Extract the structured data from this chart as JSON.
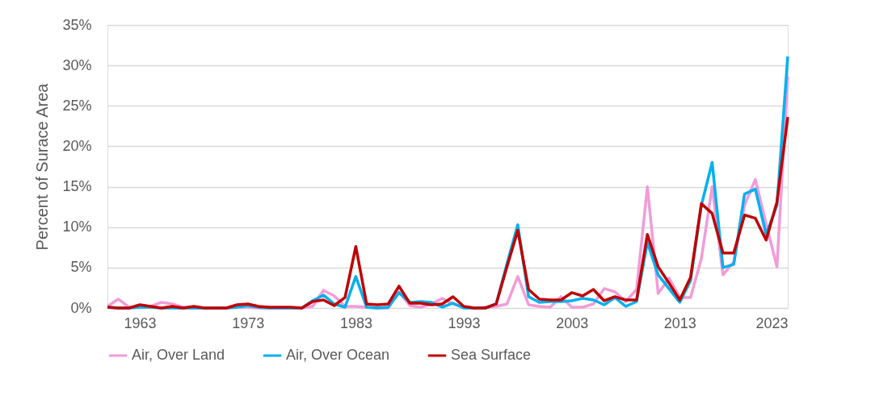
{
  "chart_data": {
    "type": "line",
    "ylabel": "Percent of Surace Area",
    "x": [
      1960,
      1961,
      1962,
      1963,
      1964,
      1965,
      1966,
      1967,
      1968,
      1969,
      1970,
      1971,
      1972,
      1973,
      1974,
      1975,
      1976,
      1977,
      1978,
      1979,
      1980,
      1981,
      1982,
      1983,
      1984,
      1985,
      1986,
      1987,
      1988,
      1989,
      1990,
      1991,
      1992,
      1993,
      1994,
      1995,
      1996,
      1997,
      1998,
      1999,
      2000,
      2001,
      2002,
      2003,
      2004,
      2005,
      2006,
      2007,
      2008,
      2009,
      2010,
      2011,
      2012,
      2013,
      2014,
      2015,
      2016,
      2017,
      2018,
      2019,
      2020,
      2021,
      2022,
      2023
    ],
    "series": [
      {
        "name": "Air, Over Land",
        "color": "#f19cd8",
        "values": [
          0.2,
          1.1,
          0.1,
          0.1,
          0.2,
          0.7,
          0.5,
          0.1,
          0,
          0,
          0,
          0,
          0.1,
          0.1,
          0,
          0,
          0,
          0,
          0,
          0.2,
          2.2,
          1.5,
          0.2,
          0.2,
          0.1,
          0,
          0,
          2.0,
          0.3,
          0.1,
          0.5,
          1.2,
          0.5,
          0.1,
          0,
          0.1,
          0.2,
          0.5,
          3.9,
          0.4,
          0.2,
          0.1,
          1.4,
          0.1,
          0.1,
          0.5,
          2.4,
          2.0,
          0.8,
          2.3,
          15.0,
          1.8,
          3.7,
          1.3,
          1.3,
          6.1,
          15.0,
          4.1,
          5.7,
          12.7,
          15.9,
          10.4,
          5.1,
          28.6
        ]
      },
      {
        "name": "Air, Over Ocean",
        "color": "#00b0f0",
        "values": [
          0.1,
          0,
          0,
          0.1,
          0.1,
          0,
          0,
          0,
          0,
          0,
          0,
          0,
          0.1,
          0.3,
          0.1,
          0,
          0,
          0,
          0,
          0.9,
          1.6,
          0.5,
          0.1,
          3.9,
          0.1,
          0,
          0.1,
          1.9,
          0.7,
          0.8,
          0.7,
          0.1,
          0.6,
          0,
          0,
          0,
          0.5,
          5.5,
          10.3,
          1.4,
          0.7,
          0.8,
          0.8,
          0.9,
          1.2,
          1.0,
          0.4,
          1.3,
          0.2,
          0.8,
          8.1,
          4.1,
          2.4,
          0.7,
          3.4,
          12.7,
          18.0,
          5.0,
          5.4,
          14.1,
          14.7,
          9.1,
          12.7,
          31.1
        ]
      },
      {
        "name": "Sea Surface",
        "color": "#c00000",
        "values": [
          0.1,
          0,
          0,
          0.4,
          0.2,
          0,
          0.2,
          0,
          0.2,
          0,
          0,
          0,
          0.4,
          0.5,
          0.2,
          0.1,
          0.1,
          0.1,
          0,
          0.8,
          1.0,
          0.3,
          1.3,
          7.6,
          0.5,
          0.4,
          0.5,
          2.7,
          0.6,
          0.6,
          0.4,
          0.5,
          1.4,
          0.2,
          0,
          0,
          0.5,
          5.1,
          9.6,
          2.3,
          1.1,
          1.0,
          1.0,
          1.9,
          1.5,
          2.3,
          0.9,
          1.4,
          1.0,
          1.0,
          9.1,
          5.1,
          3.1,
          1.0,
          3.8,
          12.9,
          11.7,
          6.8,
          6.8,
          11.5,
          11.1,
          8.4,
          13.1,
          23.6
        ]
      }
    ],
    "xlim": [
      1960,
      2023
    ],
    "xticks": [
      1963,
      1973,
      1983,
      1993,
      2003,
      2013,
      2023
    ],
    "ylim": [
      0,
      35
    ],
    "yticks": [
      {
        "value": 0,
        "label": "0%"
      },
      {
        "value": 5,
        "label": "5%"
      },
      {
        "value": 10,
        "label": "10%"
      },
      {
        "value": 15,
        "label": "15%"
      },
      {
        "value": 20,
        "label": "20%"
      },
      {
        "value": 25,
        "label": "25%"
      },
      {
        "value": 30,
        "label": "30%"
      },
      {
        "value": 35,
        "label": "35%"
      }
    ],
    "grid": "y",
    "legend": "bottom",
    "marker": "none",
    "line_style": "solid"
  }
}
